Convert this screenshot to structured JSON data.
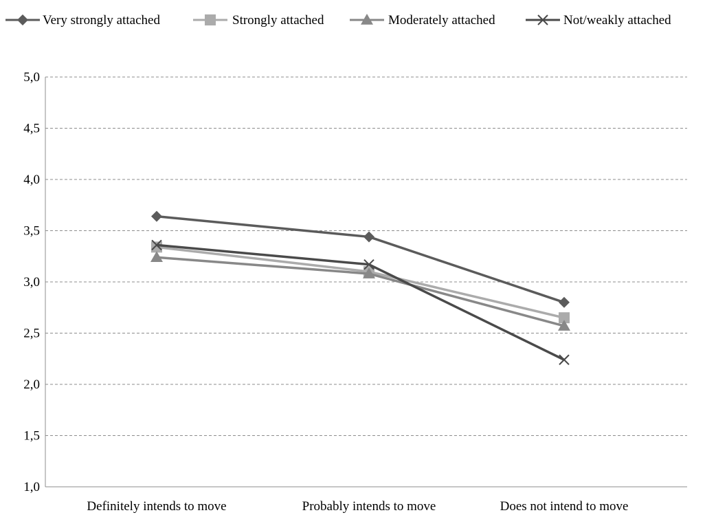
{
  "chart_data": {
    "type": "line",
    "categories": [
      "Definitely intends to move",
      "Probably intends to move",
      "Does not intend to move"
    ],
    "series": [
      {
        "name": "Very strongly attached",
        "values": [
          3.64,
          3.44,
          2.8
        ],
        "color": "#5b5b5b",
        "marker": "diamond"
      },
      {
        "name": "Strongly attached",
        "values": [
          3.34,
          3.1,
          2.65
        ],
        "color": "#ababab",
        "marker": "square"
      },
      {
        "name": "Moderately attached",
        "values": [
          3.24,
          3.08,
          2.57
        ],
        "color": "#888888",
        "marker": "triangle"
      },
      {
        "name": "Not/weakly attached",
        "values": [
          3.36,
          3.17,
          2.24
        ],
        "color": "#4a4a4a",
        "marker": "x"
      }
    ],
    "yticks": [
      "1,0",
      "1,5",
      "2,0",
      "2,5",
      "3,0",
      "3,5",
      "4,0",
      "4,5",
      "5,0"
    ],
    "ylim": [
      1.0,
      5.0
    ],
    "grid": "horizontal-dashed",
    "legend": "top"
  }
}
